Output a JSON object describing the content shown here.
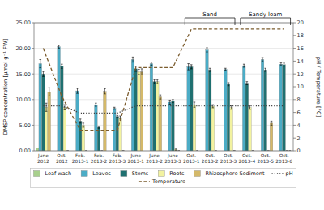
{
  "chart_data": {
    "type": "bar",
    "categories": [
      "June\n2012",
      "Oct.\n2012",
      "Feb.\n2013-1",
      "Feb.\n2013-2",
      "Feb.\n2013-3",
      "June\n2013-1",
      "June\n2013-2",
      "June\n2013-3",
      "Oct.\n2013-1",
      "Oct.\n2013-2",
      "Oct.\n2013-3",
      "Oct.\n2013-4",
      "Oct.\n2013-5",
      "Oct.\n2013-6"
    ],
    "series": [
      {
        "name": "Leaf wash",
        "type": "bar",
        "color": "#a8d08d",
        "values": [
          0.5,
          0.0,
          0.0,
          0.0,
          0.0,
          0.0,
          0.0,
          0.0,
          0.0,
          0.0,
          0.0,
          0.0,
          0.0,
          0.0
        ]
      },
      {
        "name": "Leaves",
        "type": "bar",
        "color": "#4bacc6",
        "values": [
          17.0,
          20.3,
          11.7,
          9.0,
          8.3,
          17.8,
          17.0,
          9.5,
          16.4,
          19.7,
          15.9,
          16.6,
          17.8,
          16.9
        ],
        "errors": [
          0.8,
          0.3,
          0.5,
          0.3,
          0.2,
          0.5,
          0.3,
          0.4,
          0.6,
          0.4,
          0.2,
          0.3,
          0.4,
          0.3
        ]
      },
      {
        "name": "Stems",
        "type": "bar",
        "color": "#1f7070",
        "values": [
          15.0,
          16.5,
          5.8,
          4.6,
          6.7,
          16.0,
          13.5,
          9.7,
          16.4,
          15.8,
          13.0,
          13.2,
          15.8,
          16.8
        ],
        "errors": [
          0.5,
          0.4,
          0.4,
          0.2,
          0.2,
          0.5,
          0.4,
          0.3,
          0.4,
          0.3,
          0.3,
          0.3,
          0.3,
          0.3
        ]
      },
      {
        "name": "Roots",
        "type": "bar",
        "color": "#f2f2a0",
        "values": [
          8.5,
          8.5,
          5.0,
          0.0,
          6.5,
          15.4,
          13.5,
          0.3,
          9.0,
          8.7,
          8.5,
          8.5,
          0.0,
          0.0
        ],
        "errors": [
          0.8,
          0.5,
          0.4,
          0.0,
          0.3,
          0.5,
          0.4,
          0.2,
          0.5,
          0.3,
          0.4,
          0.4,
          0.0,
          0.0
        ]
      },
      {
        "name": "Rhizosphere Sediment",
        "type": "bar",
        "color": "#d4b96a",
        "values": [
          11.5,
          0.0,
          0.0,
          11.6,
          0.0,
          15.4,
          10.5,
          0.0,
          0.0,
          0.0,
          0.0,
          0.0,
          5.4,
          0.0
        ],
        "errors": [
          0.8,
          0.0,
          0.0,
          0.5,
          0.0,
          0.6,
          0.4,
          0.0,
          0.0,
          0.0,
          0.0,
          0.0,
          0.4,
          0.0
        ]
      },
      {
        "name": "pH",
        "type": "line",
        "axis": "y2",
        "color": "#404040",
        "line_style": "dotted",
        "values": [
          7.0,
          7.0,
          5.9,
          5.9,
          5.9,
          7.0,
          7.0,
          7.0,
          7.0,
          7.0,
          7.0,
          7.0,
          7.0,
          7.0
        ]
      },
      {
        "name": "Temperature",
        "type": "line",
        "axis": "y2",
        "color": "#7b5c2e",
        "line_style": "dashed",
        "values": [
          16.0,
          8.5,
          3.2,
          3.2,
          3.2,
          13.0,
          13.0,
          13.0,
          19.0,
          19.0,
          19.0,
          19.0,
          19.0,
          19.0
        ]
      }
    ],
    "ylabel": "DMSP concentration [μmol g⁻¹ FW]",
    "y2label": "pH / Temperature [°C]",
    "ylim": [
      0,
      25
    ],
    "yticks": [
      {
        "value": 0,
        "label": "0.00"
      },
      {
        "value": 5,
        "label": "5.00"
      },
      {
        "value": 10,
        "label": "10.00"
      },
      {
        "value": 15,
        "label": "15.00"
      },
      {
        "value": 20,
        "label": "20.00"
      },
      {
        "value": 25,
        "label": "25.00"
      }
    ],
    "y2lim": [
      0,
      20
    ],
    "y2ticks": [
      0,
      2,
      4,
      6,
      8,
      10,
      12,
      14,
      16,
      18,
      20
    ],
    "annotations": [
      {
        "text": "Sand",
        "start": "Oct.\n2013-1",
        "end": "Oct.\n2013-3"
      },
      {
        "text": "Sandy loam",
        "start": "Oct.\n2013-4",
        "end": "Oct.\n2013-6"
      }
    ],
    "grid": true,
    "legend": "bottom"
  }
}
